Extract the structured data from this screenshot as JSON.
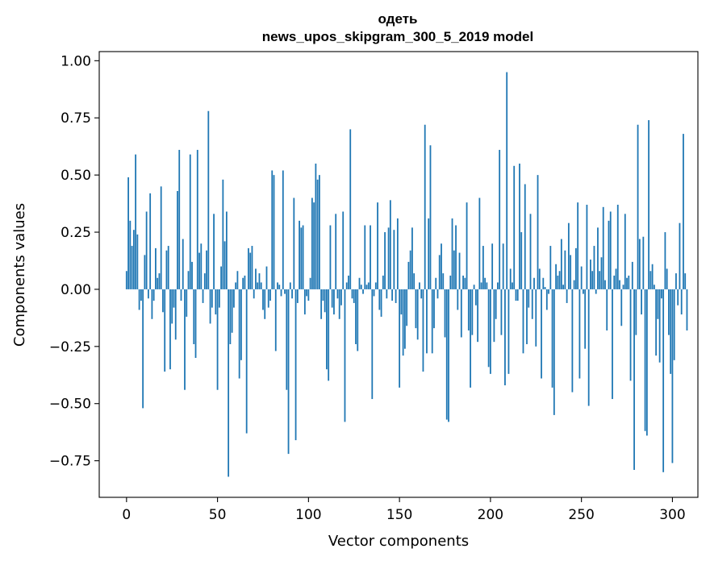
{
  "chart_data": {
    "type": "bar",
    "title_lines": [
      "одеть",
      "news_upos_skipgram_300_5_2019 model"
    ],
    "xlabel": "Vector components",
    "ylabel": "Components values",
    "xlim": [
      -15,
      314
    ],
    "ylim": [
      -0.91,
      1.04
    ],
    "xticks": [
      0,
      50,
      100,
      150,
      200,
      250,
      300
    ],
    "yticks": [
      -0.75,
      -0.5,
      -0.25,
      0.0,
      0.25,
      0.5,
      0.75,
      1.0
    ],
    "ytick_labels": [
      "−0.75",
      "−0.50",
      "−0.25",
      "0.00",
      "0.25",
      "0.50",
      "0.75",
      "1.00"
    ],
    "bar_color": "#1f77b4",
    "values": [
      0.08,
      0.49,
      0.3,
      0.19,
      0.26,
      0.59,
      0.24,
      -0.09,
      -0.05,
      -0.52,
      0.15,
      0.34,
      -0.04,
      0.42,
      -0.13,
      -0.05,
      0.18,
      0.05,
      0.07,
      0.45,
      -0.1,
      -0.36,
      0.17,
      0.19,
      -0.35,
      -0.15,
      -0.08,
      -0.22,
      0.43,
      0.61,
      -0.05,
      0.22,
      -0.44,
      -0.12,
      0.08,
      0.59,
      0.12,
      -0.24,
      -0.3,
      0.61,
      0.16,
      0.2,
      -0.06,
      0.07,
      0.17,
      0.78,
      -0.15,
      -0.08,
      0.33,
      -0.11,
      -0.44,
      -0.08,
      0.1,
      0.48,
      0.21,
      0.34,
      -0.82,
      -0.24,
      -0.19,
      -0.08,
      0.03,
      0.08,
      -0.39,
      -0.31,
      0.05,
      0.06,
      -0.63,
      0.18,
      0.16,
      0.19,
      -0.04,
      0.09,
      0.03,
      0.07,
      0.03,
      -0.09,
      -0.13,
      0.1,
      -0.08,
      -0.05,
      0.52,
      0.5,
      -0.27,
      0.03,
      0.02,
      -0.03,
      0.52,
      -0.02,
      -0.44,
      -0.72,
      0.03,
      -0.04,
      0.4,
      -0.66,
      -0.06,
      0.3,
      0.27,
      0.28,
      -0.11,
      -0.03,
      -0.05,
      0.05,
      0.4,
      0.38,
      0.55,
      0.48,
      0.5,
      -0.13,
      -0.05,
      -0.1,
      -0.35,
      -0.4,
      0.28,
      -0.08,
      -0.11,
      0.33,
      -0.04,
      -0.13,
      -0.07,
      0.34,
      -0.58,
      0.03,
      0.06,
      0.7,
      -0.04,
      -0.06,
      -0.24,
      -0.27,
      0.05,
      0.02,
      -0.02,
      0.28,
      0.02,
      0.03,
      0.28,
      -0.48,
      -0.03,
      0.03,
      0.38,
      -0.09,
      -0.12,
      0.06,
      0.25,
      -0.04,
      0.27,
      0.39,
      -0.05,
      0.26,
      -0.06,
      0.31,
      -0.43,
      -0.11,
      -0.29,
      -0.26,
      -0.16,
      0.12,
      0.17,
      0.27,
      0.07,
      -0.17,
      -0.22,
      0.03,
      -0.04,
      -0.36,
      0.72,
      -0.28,
      0.31,
      0.63,
      -0.28,
      -0.17,
      0.05,
      -0.04,
      0.15,
      0.2,
      0.07,
      -0.21,
      -0.57,
      -0.58,
      0.06,
      0.31,
      0.17,
      0.28,
      -0.09,
      0.16,
      -0.21,
      0.06,
      0.05,
      0.38,
      -0.18,
      -0.43,
      -0.2,
      0.02,
      -0.07,
      -0.23,
      0.4,
      0.03,
      0.19,
      0.05,
      0.03,
      -0.34,
      -0.37,
      0.2,
      -0.23,
      -0.13,
      0.03,
      0.61,
      -0.2,
      0.2,
      -0.42,
      0.95,
      -0.37,
      0.09,
      0.03,
      0.54,
      -0.05,
      -0.05,
      0.55,
      0.25,
      -0.28,
      0.46,
      -0.24,
      -0.08,
      0.33,
      -0.13,
      0.05,
      -0.25,
      0.5,
      0.09,
      -0.39,
      0.05,
      0.01,
      -0.09,
      -0.02,
      0.19,
      -0.43,
      -0.55,
      0.11,
      0.06,
      0.08,
      0.22,
      0.02,
      0.17,
      -0.06,
      0.29,
      0.15,
      -0.45,
      0.04,
      0.18,
      0.38,
      -0.39,
      0.1,
      -0.02,
      -0.26,
      0.37,
      -0.51,
      0.13,
      0.08,
      0.19,
      -0.02,
      0.27,
      0.08,
      0.14,
      0.36,
      0.04,
      -0.18,
      0.3,
      0.34,
      -0.48,
      0.06,
      0.09,
      0.37,
      0.04,
      -0.16,
      0.02,
      0.33,
      0.05,
      0.06,
      -0.4,
      0.12,
      -0.79,
      -0.2,
      0.72,
      0.22,
      -0.11,
      0.23,
      -0.62,
      -0.64,
      0.74,
      0.08,
      0.11,
      0.02,
      -0.29,
      -0.13,
      -0.32,
      -0.04,
      -0.8,
      0.25,
      0.09,
      -0.2,
      -0.37,
      -0.76,
      -0.31,
      0.07,
      -0.07,
      0.29,
      -0.11,
      0.68,
      0.07,
      -0.18
    ]
  }
}
